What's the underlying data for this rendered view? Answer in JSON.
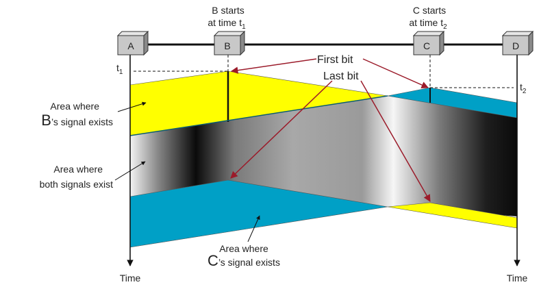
{
  "stations": [
    {
      "id": "a",
      "label": "A"
    },
    {
      "id": "b",
      "label": "B"
    },
    {
      "id": "c",
      "label": "C"
    },
    {
      "id": "d",
      "label": "D"
    }
  ],
  "b_start": {
    "line1": "B starts",
    "line2": "at time t",
    "sub": "1"
  },
  "c_start": {
    "line1": "C starts",
    "line2": "at time t",
    "sub": "2"
  },
  "t1": {
    "base": "t",
    "sub": "1"
  },
  "t2": {
    "base": "t",
    "sub": "2"
  },
  "first_bit": "First bit",
  "last_bit": "Last bit",
  "b_area": {
    "line1": "Area where",
    "big": "B",
    "rest": "’s signal exists"
  },
  "both_area": {
    "line1": "Area where",
    "line2": "both signals exist"
  },
  "c_area": {
    "line1": "Area where",
    "big": "C",
    "rest": "’s signal exists"
  },
  "time_left": "Time",
  "time_right": "Time",
  "colors": {
    "yellow": "#ffff00",
    "cyan": "#00a0c6",
    "arrow": "#9b1b2a",
    "box": "#c8c8c8"
  }
}
